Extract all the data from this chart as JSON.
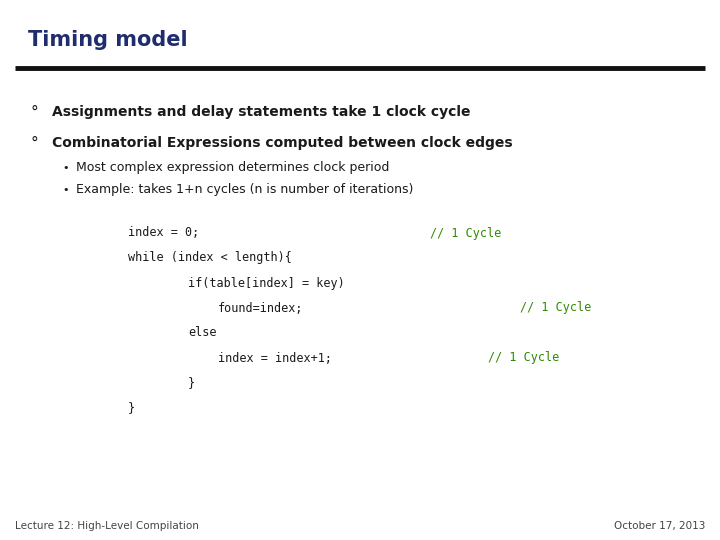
{
  "title": "Timing model",
  "title_color": "#1f2d6e",
  "title_fontsize": 15,
  "bg_color": "#ffffff",
  "separator_color": "#111111",
  "bullet1": "Assignments and delay statements take 1 clock cycle",
  "bullet2": "Combinatorial Expressions computed between clock edges",
  "sub1": "Most complex expression determines clock period",
  "sub2": "Example: takes 1+n cycles (n is number of iterations)",
  "bullet_color": "#1a1a1a",
  "bullet_fontsize": 10,
  "sub_fontsize": 9,
  "code_black": "#1a1a1a",
  "code_green": "#2e8b00",
  "footer_left": "Lecture 12: High-Level Compilation",
  "footer_right": "October 17, 2013",
  "footer_fontsize": 7.5
}
